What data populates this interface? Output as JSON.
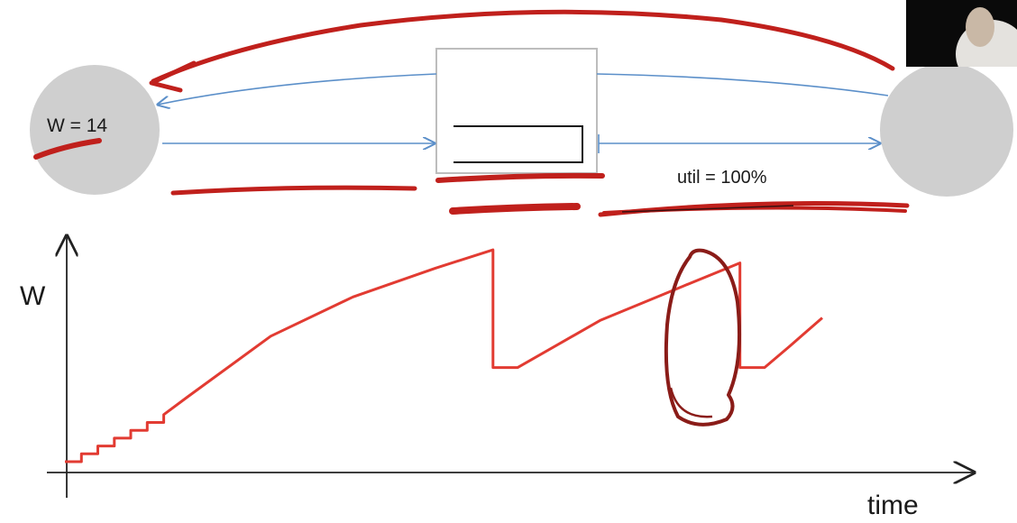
{
  "diagram": {
    "sender_label": "W = 14",
    "link_label": "util = 100%",
    "colors": {
      "node": "#cfcfcf",
      "link": "#5b8fc9",
      "router": "#bdbdbd",
      "queue": "#111111",
      "ink": "#c0201c",
      "curve": "#e23b32"
    }
  },
  "chart": {
    "ylabel": "W",
    "xlabel": "time"
  },
  "chart_data": {
    "type": "line",
    "title": "",
    "xlabel": "time",
    "ylabel": "W",
    "series": [
      {
        "name": "",
        "x": [
          0,
          0.02,
          0.02,
          0.04,
          0.04,
          0.06,
          0.06,
          0.08,
          0.08,
          0.1,
          0.1,
          0.12,
          0.12,
          0.15,
          0.25,
          0.35,
          0.45,
          0.52,
          0.52,
          0.55,
          0.65,
          0.75,
          0.82,
          0.82,
          0.85,
          0.88,
          0.92
        ],
        "y": [
          0.0,
          0.0,
          0.03,
          0.03,
          0.06,
          0.06,
          0.09,
          0.09,
          0.12,
          0.12,
          0.15,
          0.15,
          0.18,
          0.25,
          0.48,
          0.63,
          0.74,
          0.81,
          0.36,
          0.36,
          0.54,
          0.67,
          0.76,
          0.36,
          0.36,
          0.44,
          0.55
        ]
      }
    ]
  }
}
